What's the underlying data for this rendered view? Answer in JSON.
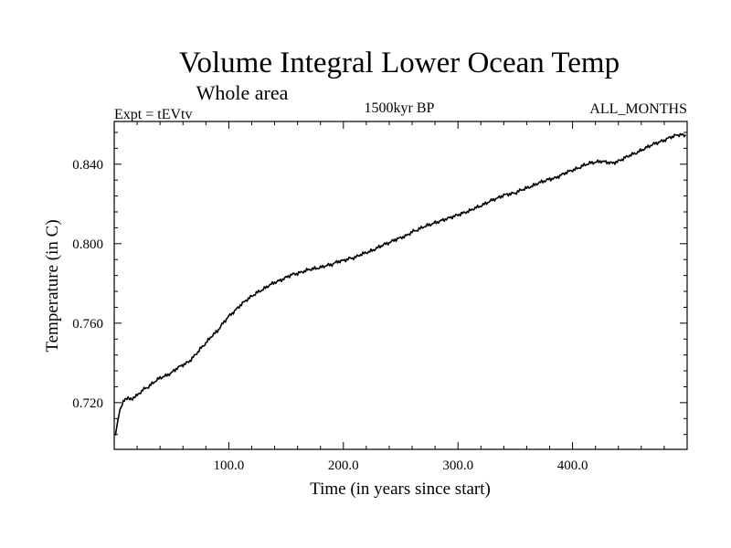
{
  "chart_data": {
    "type": "line",
    "title": "Volume Integral Lower Ocean Temp",
    "subtitle": "Whole area",
    "annotation_left": "Expt = tEVtv",
    "annotation_center": "1500kyr BP",
    "annotation_right": "ALL_MONTHS",
    "xlabel": "Time (in years since start)",
    "ylabel": "Temperature (in C)",
    "xlim": [
      0,
      500
    ],
    "ylim": [
      0.6965,
      0.8615
    ],
    "xticks": [
      100,
      200,
      300,
      400
    ],
    "xtick_labels": [
      "100.0",
      "200.0",
      "300.0",
      "400.0"
    ],
    "yticks": [
      0.72,
      0.76,
      0.8,
      0.84
    ],
    "ytick_labels": [
      "0.720",
      "0.760",
      "0.800",
      "0.840"
    ],
    "grid": false,
    "series": [
      {
        "name": "Volume Integral Lower Ocean Temp",
        "x": [
          1,
          3,
          5,
          8,
          12,
          16,
          20,
          25,
          30,
          35,
          40,
          45,
          50,
          55,
          60,
          65,
          70,
          75,
          80,
          85,
          90,
          95,
          100,
          105,
          110,
          115,
          120,
          125,
          130,
          135,
          140,
          145,
          150,
          155,
          160,
          165,
          170,
          175,
          180,
          185,
          190,
          195,
          200,
          205,
          210,
          215,
          220,
          225,
          230,
          235,
          240,
          245,
          250,
          255,
          260,
          265,
          270,
          275,
          280,
          285,
          290,
          295,
          300,
          305,
          310,
          315,
          320,
          325,
          330,
          335,
          340,
          345,
          350,
          355,
          360,
          365,
          370,
          375,
          380,
          385,
          390,
          395,
          400,
          405,
          410,
          415,
          420,
          425,
          430,
          435,
          440,
          445,
          450,
          455,
          460,
          465,
          470,
          475,
          480,
          485,
          490,
          495,
          499
        ],
        "values": [
          0.7035,
          0.7105,
          0.7165,
          0.7205,
          0.7225,
          0.722,
          0.7235,
          0.7265,
          0.728,
          0.7305,
          0.7325,
          0.7335,
          0.735,
          0.7375,
          0.739,
          0.7405,
          0.7435,
          0.747,
          0.75,
          0.7535,
          0.756,
          0.76,
          0.7635,
          0.766,
          0.769,
          0.7715,
          0.7735,
          0.7755,
          0.777,
          0.779,
          0.7805,
          0.7815,
          0.783,
          0.7845,
          0.785,
          0.786,
          0.787,
          0.7875,
          0.788,
          0.789,
          0.7895,
          0.791,
          0.7915,
          0.7925,
          0.793,
          0.7945,
          0.7955,
          0.7965,
          0.798,
          0.7995,
          0.8005,
          0.802,
          0.803,
          0.804,
          0.806,
          0.807,
          0.8085,
          0.8095,
          0.8105,
          0.8115,
          0.8125,
          0.8135,
          0.8145,
          0.8155,
          0.8165,
          0.818,
          0.819,
          0.8205,
          0.822,
          0.823,
          0.8245,
          0.825,
          0.8255,
          0.827,
          0.828,
          0.829,
          0.8305,
          0.8315,
          0.8325,
          0.833,
          0.8345,
          0.836,
          0.837,
          0.838,
          0.8395,
          0.8405,
          0.841,
          0.8415,
          0.841,
          0.8405,
          0.8415,
          0.843,
          0.8445,
          0.8455,
          0.847,
          0.8485,
          0.85,
          0.851,
          0.852,
          0.8535,
          0.8545,
          0.855,
          0.8545
        ]
      }
    ]
  }
}
